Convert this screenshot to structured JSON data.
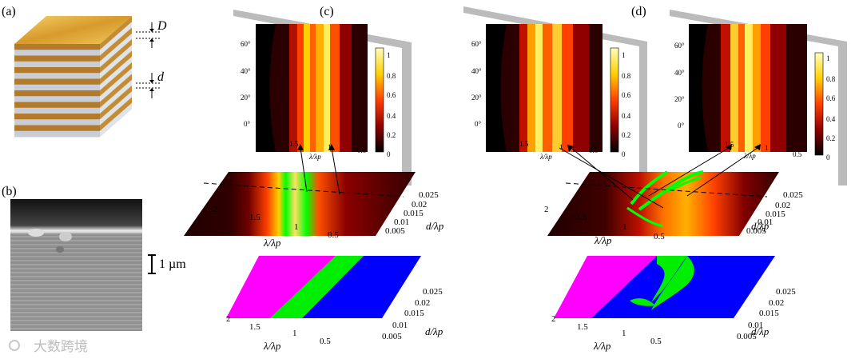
{
  "panels": {
    "a": "(a)",
    "b": "(b)",
    "c": "(c)",
    "d": "(d)"
  },
  "cube": {
    "D_label": "D",
    "d_label": "d"
  },
  "sem": {
    "scalebar_label": "1 µm"
  },
  "axes": {
    "wavelength_label": "λ/λp",
    "thickness_label": "d/λp",
    "wavelength_ticks": [
      "2",
      "1.5",
      "1",
      "0.5"
    ],
    "thickness_ticks": [
      "0.025",
      "0.02",
      "0.015",
      "0.01",
      "0.005"
    ],
    "angle_ticks": [
      "60°",
      "40°",
      "20°",
      "0°"
    ],
    "colorbar_ticks": [
      "1",
      "0.8",
      "0.6",
      "0.4",
      "0.2",
      "0"
    ]
  },
  "watermark": {
    "text": "大数跨境"
  },
  "colors": {
    "magenta": "#ff00ff",
    "green": "#00ee00",
    "blue": "#0000ff",
    "gold": "#d9a33a"
  }
}
